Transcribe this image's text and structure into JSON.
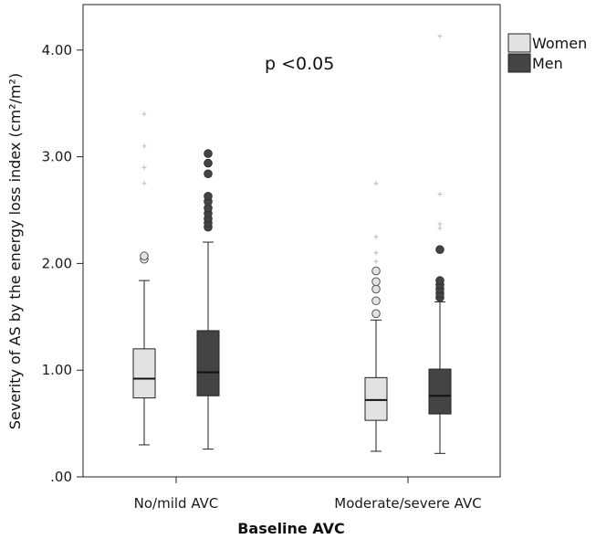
{
  "chart_data": {
    "type": "box",
    "xlabel": "Baseline AVC",
    "ylabel": "Severity of AS by the energy loss index (cm²/m²)",
    "ylim": [
      0,
      4.2
    ],
    "yticks": [
      0,
      1,
      2,
      3,
      4
    ],
    "ytick_labels": [
      ".00",
      "1.00",
      "2.00",
      "3.00",
      "4.00"
    ],
    "categories": [
      "No/mild AVC",
      "Moderate/severe AVC"
    ],
    "annotation": "p <0.05",
    "legend_position": "top-right-outside",
    "series": [
      {
        "name": "Women",
        "color": "#e2e2e2",
        "boxes": [
          {
            "min": 0.3,
            "q1": 0.74,
            "median": 0.92,
            "q3": 1.2,
            "max": 1.84,
            "outliers": [
              2.04,
              2.07
            ],
            "extremes": [
              2.75,
              2.9,
              3.1,
              3.4
            ]
          },
          {
            "min": 0.24,
            "q1": 0.53,
            "median": 0.72,
            "q3": 0.93,
            "max": 1.47,
            "outliers": [
              1.53,
              1.65,
              1.76,
              1.83,
              1.93
            ],
            "extremes": [
              2.02,
              2.1,
              2.25,
              2.75
            ]
          }
        ]
      },
      {
        "name": "Men",
        "color": "#444444",
        "boxes": [
          {
            "min": 0.26,
            "q1": 0.76,
            "median": 0.98,
            "q3": 1.37,
            "max": 2.2,
            "outliers": [
              2.34,
              2.38,
              2.42,
              2.47,
              2.52,
              2.58,
              2.63,
              2.84,
              2.94,
              3.03
            ],
            "extremes": []
          },
          {
            "min": 0.22,
            "q1": 0.59,
            "median": 0.76,
            "q3": 1.01,
            "max": 1.64,
            "outliers": [
              1.68,
              1.72,
              1.76,
              1.8,
              1.84,
              2.13
            ],
            "extremes": [
              2.33,
              2.37,
              2.65,
              4.13
            ]
          }
        ]
      }
    ]
  }
}
